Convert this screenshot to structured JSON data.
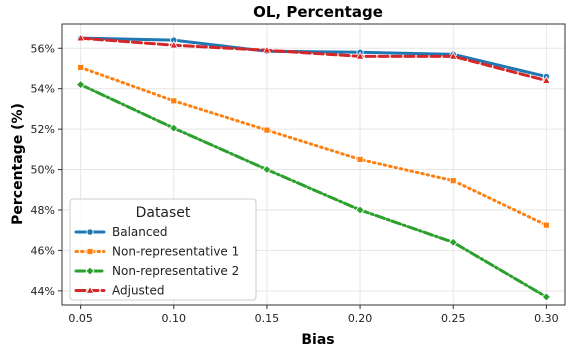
{
  "chart_data": {
    "type": "line",
    "title": "OL, Percentage",
    "xlabel": "Bias",
    "ylabel": "Percentage (%)",
    "x": [
      0.05,
      0.1,
      0.15,
      0.2,
      0.25,
      0.3
    ],
    "x_tick_labels": [
      "0.05",
      "0.10",
      "0.15",
      "0.20",
      "0.25",
      "0.30"
    ],
    "y_ticks": [
      44,
      46,
      48,
      50,
      52,
      54,
      56
    ],
    "y_tick_labels": [
      "44%",
      "46%",
      "48%",
      "50%",
      "52%",
      "54%",
      "56%"
    ],
    "xlim": [
      0.04,
      0.31
    ],
    "ylim": [
      43.3,
      57.2
    ],
    "grid": true,
    "legend": {
      "title": "Dataset",
      "placement": "lower-left"
    },
    "series": [
      {
        "name": "Balanced",
        "values": [
          56.5,
          56.4,
          55.85,
          55.8,
          55.7,
          54.6
        ],
        "color": "#1f77b4",
        "linestyle": "solid",
        "marker": "circle"
      },
      {
        "name": "Non-representative 1",
        "values": [
          55.05,
          53.4,
          51.95,
          50.5,
          49.45,
          47.25
        ],
        "color": "#ff7f0e",
        "linestyle": "dotted",
        "marker": "square"
      },
      {
        "name": "Non-representative 2",
        "values": [
          54.2,
          52.05,
          50.0,
          48.0,
          46.4,
          43.7
        ],
        "color": "#2ca02c",
        "linestyle": "dashdot",
        "marker": "diamond"
      },
      {
        "name": "Adjusted",
        "values": [
          56.5,
          56.15,
          55.9,
          55.6,
          55.6,
          54.4
        ],
        "color": "#d62728",
        "linestyle": "dashed",
        "marker": "triangle"
      }
    ]
  }
}
